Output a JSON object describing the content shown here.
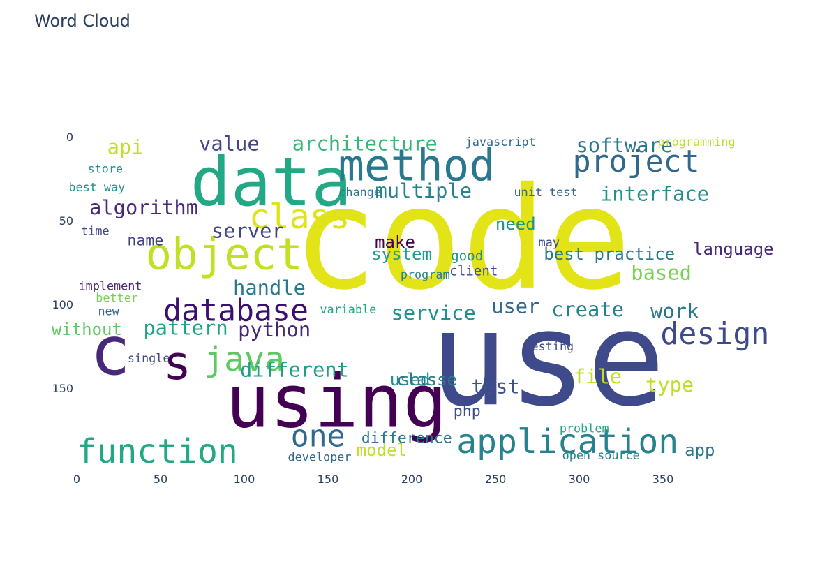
{
  "chart_data": {
    "type": "image",
    "title": "Word Cloud",
    "x_ticks": [
      0,
      50,
      100,
      150,
      200,
      250,
      300,
      350
    ],
    "y_ticks": [
      0,
      50,
      100,
      150
    ],
    "xlim": [
      0,
      400
    ],
    "ylim": [
      0,
      200
    ],
    "words": [
      {
        "text": "code",
        "x": 230,
        "y": 61,
        "size": 84,
        "color": "#e2e418"
      },
      {
        "text": "use",
        "x": 281,
        "y": 133,
        "size": 78,
        "color": "#3e4a89"
      },
      {
        "text": "using",
        "x": 155,
        "y": 158,
        "size": 44,
        "color": "#440154"
      },
      {
        "text": "data",
        "x": 116,
        "y": 27,
        "size": 40,
        "color": "#22a884"
      },
      {
        "text": "method",
        "x": 203,
        "y": 17,
        "size": 26,
        "color": "#2a788e"
      },
      {
        "text": "object",
        "x": 88,
        "y": 70,
        "size": 26,
        "color": "#c2df23"
      },
      {
        "text": "database",
        "x": 95,
        "y": 104,
        "size": 18,
        "color": "#3b0f70"
      },
      {
        "text": "c",
        "x": 20,
        "y": 128,
        "size": 40,
        "color": "#482878"
      },
      {
        "text": "s",
        "x": 60,
        "y": 135,
        "size": 28,
        "color": "#440154"
      },
      {
        "text": "java",
        "x": 100,
        "y": 133,
        "size": 20,
        "color": "#5ec962"
      },
      {
        "text": "project",
        "x": 334,
        "y": 15,
        "size": 18,
        "color": "#31688e"
      },
      {
        "text": "class",
        "x": 133,
        "y": 48,
        "size": 20,
        "color": "#dde318"
      },
      {
        "text": "function",
        "x": 48,
        "y": 188,
        "size": 20,
        "color": "#22a884"
      },
      {
        "text": "application",
        "x": 293,
        "y": 182,
        "size": 20,
        "color": "#26828e"
      },
      {
        "text": "one",
        "x": 144,
        "y": 179,
        "size": 18,
        "color": "#31688e"
      },
      {
        "text": "design",
        "x": 381,
        "y": 118,
        "size": 18,
        "color": "#3e4a89"
      },
      {
        "text": "software",
        "x": 327,
        "y": 5,
        "size": 12,
        "color": "#2a788e"
      },
      {
        "text": "architecture",
        "x": 172,
        "y": 4,
        "size": 12,
        "color": "#35b779"
      },
      {
        "text": "value",
        "x": 91,
        "y": 4,
        "size": 12,
        "color": "#414487"
      },
      {
        "text": "api",
        "x": 29,
        "y": 6,
        "size": 12,
        "color": "#c2df23"
      },
      {
        "text": "algorithm",
        "x": 40,
        "y": 42,
        "size": 12,
        "color": "#482878"
      },
      {
        "text": "multiple",
        "x": 207,
        "y": 32,
        "size": 12,
        "color": "#26828e"
      },
      {
        "text": "interface",
        "x": 345,
        "y": 34,
        "size": 12,
        "color": "#21918c"
      },
      {
        "text": "server",
        "x": 102,
        "y": 56,
        "size": 12,
        "color": "#414487"
      },
      {
        "text": "make",
        "x": 190,
        "y": 63,
        "size": 10,
        "color": "#440154"
      },
      {
        "text": "system",
        "x": 194,
        "y": 70,
        "size": 10,
        "color": "#1f9e89"
      },
      {
        "text": "handle",
        "x": 115,
        "y": 90,
        "size": 12,
        "color": "#2a788e"
      },
      {
        "text": "pattern",
        "x": 65,
        "y": 114,
        "size": 12,
        "color": "#20a486"
      },
      {
        "text": "python",
        "x": 118,
        "y": 115,
        "size": 12,
        "color": "#482878"
      },
      {
        "text": "different",
        "x": 130,
        "y": 139,
        "size": 12,
        "color": "#1f9e89"
      },
      {
        "text": "service",
        "x": 213,
        "y": 105,
        "size": 12,
        "color": "#21918c"
      },
      {
        "text": "user",
        "x": 262,
        "y": 101,
        "size": 12,
        "color": "#31688e"
      },
      {
        "text": "create",
        "x": 305,
        "y": 103,
        "size": 12,
        "color": "#26828e"
      },
      {
        "text": "work",
        "x": 357,
        "y": 104,
        "size": 12,
        "color": "#2a788e"
      },
      {
        "text": "based",
        "x": 349,
        "y": 81,
        "size": 12,
        "color": "#7ad151"
      },
      {
        "text": "test",
        "x": 250,
        "y": 149,
        "size": 12,
        "color": "#3b528b"
      },
      {
        "text": "type",
        "x": 354,
        "y": 148,
        "size": 12,
        "color": "#bddf26"
      },
      {
        "text": "model",
        "x": 182,
        "y": 187,
        "size": 10,
        "color": "#c2df23"
      },
      {
        "text": "difference",
        "x": 197,
        "y": 180,
        "size": 9,
        "color": "#2a788e"
      },
      {
        "text": "app",
        "x": 372,
        "y": 187,
        "size": 10,
        "color": "#2a788e"
      },
      {
        "text": "php",
        "x": 233,
        "y": 164,
        "size": 9,
        "color": "#3e4a89"
      },
      {
        "text": "name",
        "x": 41,
        "y": 62,
        "size": 9,
        "color": "#414487"
      },
      {
        "text": "problem",
        "x": 303,
        "y": 174,
        "size": 7,
        "color": "#22a884"
      },
      {
        "text": "open source",
        "x": 313,
        "y": 190,
        "size": 7,
        "color": "#26828e"
      },
      {
        "text": "developer",
        "x": 145,
        "y": 191,
        "size": 7,
        "color": "#31688e"
      },
      {
        "text": "client",
        "x": 237,
        "y": 80,
        "size": 8,
        "color": "#3e4a89"
      },
      {
        "text": "good",
        "x": 233,
        "y": 71,
        "size": 8,
        "color": "#21918c"
      },
      {
        "text": "program",
        "x": 208,
        "y": 82,
        "size": 7,
        "color": "#26828e"
      },
      {
        "text": "variable",
        "x": 162,
        "y": 103,
        "size": 7,
        "color": "#22a884"
      },
      {
        "text": "implement",
        "x": 20,
        "y": 89,
        "size": 7,
        "color": "#482878"
      },
      {
        "text": "single",
        "x": 43,
        "y": 132,
        "size": 7,
        "color": "#414487"
      },
      {
        "text": "change",
        "x": 169,
        "y": 33,
        "size": 7,
        "color": "#2a788e"
      },
      {
        "text": "unit test",
        "x": 280,
        "y": 33,
        "size": 7,
        "color": "#31688e"
      },
      {
        "text": "javascript",
        "x": 253,
        "y": 3,
        "size": 7,
        "color": "#31688e"
      },
      {
        "text": "programming",
        "x": 370,
        "y": 3,
        "size": 7,
        "color": "#bddf26"
      },
      {
        "text": "best way",
        "x": 12,
        "y": 30,
        "size": 7,
        "color": "#21918c"
      },
      {
        "text": "store",
        "x": 17,
        "y": 19,
        "size": 7,
        "color": "#21918c"
      },
      {
        "text": "time",
        "x": 11,
        "y": 56,
        "size": 7,
        "color": "#414487"
      },
      {
        "text": "better",
        "x": 24,
        "y": 96,
        "size": 7,
        "color": "#7ad151"
      },
      {
        "text": "new",
        "x": 19,
        "y": 104,
        "size": 7,
        "color": "#31688e"
      },
      {
        "text": "testing",
        "x": 282,
        "y": 125,
        "size": 7,
        "color": "#3e4a89"
      },
      {
        "text": "may",
        "x": 282,
        "y": 63,
        "size": 7,
        "color": "#3e4a89"
      },
      {
        "text": "need",
        "x": 262,
        "y": 52,
        "size": 10,
        "color": "#21918c"
      },
      {
        "text": "best practice",
        "x": 318,
        "y": 70,
        "size": 10,
        "color": "#2a788e"
      },
      {
        "text": "language",
        "x": 392,
        "y": 67,
        "size": 10,
        "color": "#482878"
      },
      {
        "text": "without",
        "x": 6,
        "y": 115,
        "size": 10,
        "color": "#5ec962"
      },
      {
        "text": "file",
        "x": 311,
        "y": 143,
        "size": 12,
        "color": "#c2df23"
      },
      {
        "text": "used",
        "x": 199,
        "y": 145,
        "size": 10,
        "color": "#21918c"
      },
      {
        "text": "classe",
        "x": 209,
        "y": 145,
        "size": 10,
        "color": "#2a788e"
      }
    ]
  }
}
